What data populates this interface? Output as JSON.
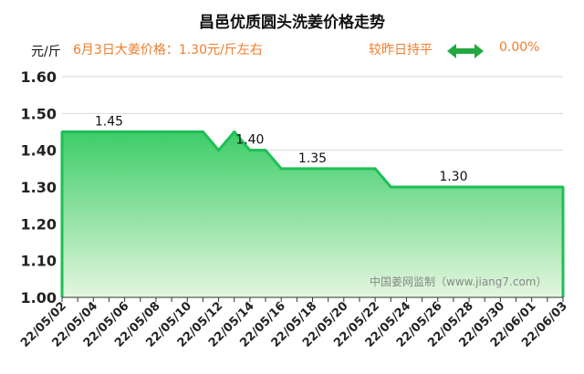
{
  "header": {
    "title": "昌邑优质圆头洗姜价格走势",
    "unit": "元/斤",
    "price_text": "6月3日大姜价格：1.30元/斤左右",
    "trend_text": "较昨日持平",
    "change_text": "0.00%",
    "watermark": "中国姜网监制（www.jiang7.com）"
  },
  "colors": {
    "line": "#1fbf55",
    "fill_top": "#3dcd68",
    "fill_bottom": "#e4f6df",
    "accent_text": "#ee7d2e",
    "arrow": "#22a83f"
  },
  "chart_data": {
    "type": "area",
    "title": "昌邑优质圆头洗姜价格走势",
    "ylabel": "元/斤",
    "ylim": [
      1.0,
      1.6
    ],
    "yticks": [
      "1.00",
      "1.10",
      "1.20",
      "1.30",
      "1.40",
      "1.50",
      "1.60"
    ],
    "grid": true,
    "x": [
      "22/05/02",
      "22/05/03",
      "22/05/04",
      "22/05/05",
      "22/05/06",
      "22/05/07",
      "22/05/08",
      "22/05/09",
      "22/05/10",
      "22/05/11",
      "22/05/12",
      "22/05/13",
      "22/05/14",
      "22/05/15",
      "22/05/16",
      "22/05/17",
      "22/05/18",
      "22/05/19",
      "22/05/20",
      "22/05/21",
      "22/05/22",
      "22/05/23",
      "22/05/24",
      "22/05/25",
      "22/05/26",
      "22/05/27",
      "22/05/28",
      "22/05/29",
      "22/05/30",
      "22/05/31",
      "22/06/01",
      "22/06/02",
      "22/06/03"
    ],
    "xticks": [
      "22/05/02",
      "22/05/04",
      "22/05/06",
      "22/05/08",
      "22/05/10",
      "22/05/12",
      "22/05/14",
      "22/05/16",
      "22/05/18",
      "22/05/20",
      "22/05/22",
      "22/05/24",
      "22/05/26",
      "22/05/28",
      "22/05/30",
      "22/06/01",
      "22/06/03"
    ],
    "values": [
      1.45,
      1.45,
      1.45,
      1.45,
      1.45,
      1.45,
      1.45,
      1.45,
      1.45,
      1.45,
      1.4,
      1.45,
      1.4,
      1.4,
      1.35,
      1.35,
      1.35,
      1.35,
      1.35,
      1.35,
      1.35,
      1.3,
      1.3,
      1.3,
      1.3,
      1.3,
      1.3,
      1.3,
      1.3,
      1.3,
      1.3,
      1.3,
      1.3
    ],
    "annotations": [
      {
        "x": "22/05/05",
        "y": 1.45,
        "text": "1.45"
      },
      {
        "x": "22/05/14",
        "y": 1.4,
        "text": "1.40"
      },
      {
        "x": "22/05/18",
        "y": 1.35,
        "text": "1.35"
      },
      {
        "x": "22/05/27",
        "y": 1.3,
        "text": "1.30"
      }
    ]
  }
}
